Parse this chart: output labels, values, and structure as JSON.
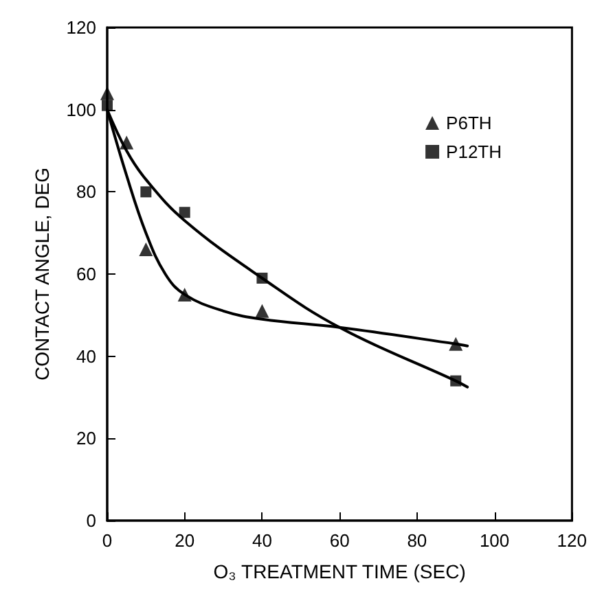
{
  "chart_data": {
    "type": "scatter",
    "xlabel": "O₃ TREATMENT TIME (SEC)",
    "ylabel": "CONTACT ANGLE, DEG",
    "xlim": [
      0,
      120
    ],
    "xticks": [
      0,
      20,
      40,
      60,
      80,
      100,
      120
    ],
    "ylim": [
      0,
      120
    ],
    "yticks": [
      0,
      20,
      40,
      60,
      80,
      100,
      120
    ],
    "grid": false,
    "legend": "top right",
    "series": [
      {
        "name": "P6TH",
        "color": "#000000",
        "marker": "triangle",
        "x": [
          0,
          5,
          10,
          20,
          40,
          90
        ],
        "values": [
          104,
          92,
          66,
          55,
          51,
          43
        ]
      },
      {
        "name": "P12TH",
        "color": "#000000",
        "marker": "square",
        "x": [
          0,
          10,
          20,
          40,
          90
        ],
        "values": [
          101,
          80,
          75,
          59,
          34
        ]
      },
      {
        "type": "line",
        "color": "#000000",
        "marker": "none",
        "line_style": "solid",
        "x": [
          0,
          5,
          10,
          15,
          20,
          30,
          40,
          60,
          90,
          93
        ],
        "values": [
          100,
          84,
          70,
          60,
          55,
          51,
          49,
          47,
          43,
          42.5
        ]
      },
      {
        "type": "line",
        "color": "#000000",
        "marker": "none",
        "line_style": "solid",
        "x": [
          0,
          5,
          10,
          20,
          40,
          60,
          90,
          93
        ],
        "values": [
          100,
          90,
          83,
          73,
          59,
          47,
          34,
          32.5
        ]
      }
    ]
  }
}
